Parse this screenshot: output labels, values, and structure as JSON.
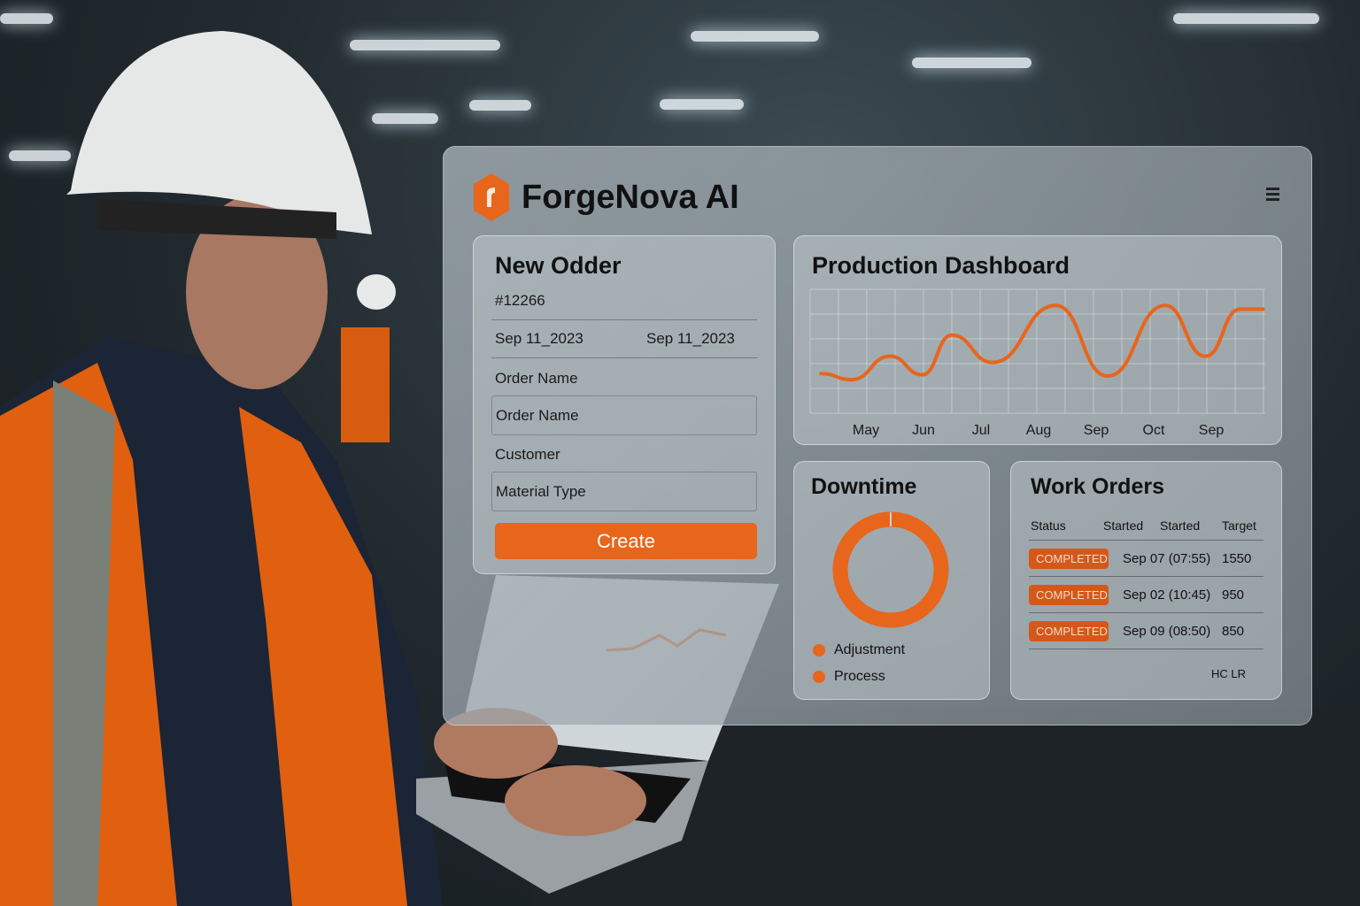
{
  "app": {
    "title": "ForgeNova AI",
    "menu_icon": "hamburger-menu-icon",
    "accent": "#e8651c"
  },
  "new_order": {
    "title": "New Odder",
    "order_id": "#12266",
    "date_start": "Sep 11_2023",
    "date_end": "Sep 11_2023",
    "order_name_label": "Order Name",
    "order_name_field": "Order Name",
    "customer_label": "Customer",
    "material_field": "Material Type",
    "create_label": "Create"
  },
  "production": {
    "title": "Production Dashboard"
  },
  "downtime": {
    "title": "Downtime",
    "legend": [
      {
        "label": "Adjustment",
        "color": "#e8651c"
      },
      {
        "label": "Process",
        "color": "#e8651c"
      }
    ]
  },
  "work_orders": {
    "title": "Work Orders",
    "columns": [
      "Status",
      "Started",
      "Started",
      "Target"
    ],
    "rows": [
      {
        "status": "COMPLETED",
        "started": "Sep 07 (07:55)",
        "target": "1550"
      },
      {
        "status": "COMPLETED",
        "started": "Sep 02 (10:45)",
        "target": "950"
      },
      {
        "status": "COMPLETED",
        "started": "Sep 09 (08:50)",
        "target": "850"
      }
    ],
    "footer": "HC LR"
  },
  "chart_data": {
    "type": "line",
    "categories": [
      "May",
      "Jun",
      "Jul",
      "Aug",
      "Sep",
      "Oct",
      "Sep"
    ],
    "grid": true,
    "color": "#e8651c",
    "points": [
      [
        -0.78,
        32
      ],
      [
        -0.25,
        27
      ],
      [
        0.42,
        46
      ],
      [
        0.98,
        31
      ],
      [
        1.49,
        63
      ],
      [
        2.2,
        41
      ],
      [
        3.3,
        87
      ],
      [
        4.2,
        30
      ],
      [
        5.2,
        87
      ],
      [
        5.9,
        46
      ],
      [
        6.5,
        84
      ],
      [
        6.9,
        84
      ]
    ],
    "ylim": [
      0,
      100
    ]
  }
}
